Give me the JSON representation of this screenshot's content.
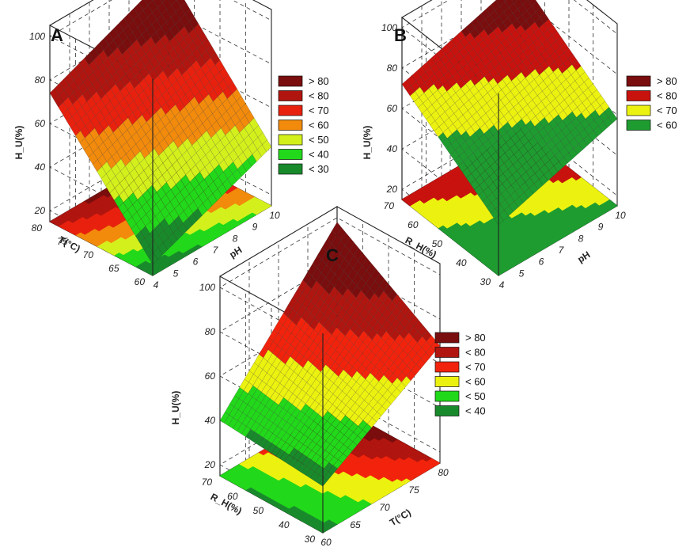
{
  "chart_data": [
    {
      "type": "surface",
      "panel_label": "A",
      "zlabel": "H_U(%)",
      "xlabel": "pH",
      "ylabel": "T(°C)",
      "z_ticks": [
        "20",
        "40",
        "60",
        "80",
        "100"
      ],
      "x_ticks": [
        "4",
        "5",
        "6",
        "7",
        "8",
        "9",
        "10"
      ],
      "y_ticks": [
        "60",
        "65",
        "70",
        "75",
        "80"
      ],
      "xlim": [
        4,
        10
      ],
      "ylim": [
        60,
        80
      ],
      "zlim": [
        15,
        105
      ],
      "surface": {
        "z_at_x10_y80": 97,
        "z_at_x4_y80": 74,
        "z_at_x10_y60": 42,
        "z_at_x4_y60": 20
      },
      "legend": {
        "labels": [
          "> 80",
          "< 80",
          "< 70",
          "< 60",
          "< 50",
          "< 40",
          "< 30"
        ],
        "colors": [
          "#7a0d0d",
          "#b0150f",
          "#e8200e",
          "#f28a0c",
          "#d4f01c",
          "#22d81a",
          "#198a2c"
        ]
      },
      "levels": [
        30,
        40,
        50,
        60,
        70,
        80
      ]
    },
    {
      "type": "surface",
      "panel_label": "B",
      "zlabel": "H_U(%)",
      "xlabel": "pH",
      "ylabel": "R_H(%)",
      "z_ticks": [
        "20",
        "40",
        "60",
        "80",
        "100"
      ],
      "x_ticks": [
        "4",
        "5",
        "6",
        "7",
        "8",
        "9",
        "10"
      ],
      "y_ticks": [
        "30",
        "40",
        "50",
        "60",
        "70"
      ],
      "xlim": [
        4,
        10
      ],
      "ylim": [
        30,
        70
      ],
      "zlim": [
        15,
        105
      ],
      "surface": {
        "z_at_x10_y70": 90,
        "z_at_x4_y70": 72,
        "z_at_x10_y30": 58,
        "z_at_x4_y30": 40
      },
      "legend": {
        "labels": [
          "> 80",
          "< 80",
          "< 70",
          "< 60"
        ],
        "colors": [
          "#7a0d0d",
          "#c8120e",
          "#ecf20f",
          "#1e9c30"
        ]
      },
      "levels": [
        60,
        70,
        80
      ]
    },
    {
      "type": "surface",
      "panel_label": "C",
      "zlabel": "H_U(%)",
      "xlabel": "T(°C)",
      "ylabel": "R_H(%)",
      "z_ticks": [
        "20",
        "40",
        "60",
        "80",
        "100"
      ],
      "x_ticks": [
        "60",
        "65",
        "70",
        "75",
        "80"
      ],
      "y_ticks": [
        "30",
        "40",
        "50",
        "60",
        "70"
      ],
      "xlim": [
        60,
        80
      ],
      "ylim": [
        30,
        70
      ],
      "zlim": [
        15,
        105
      ],
      "surface": {
        "z_at_x80_y70": 98,
        "z_at_x60_y70": 40,
        "z_at_x80_y30": 68,
        "z_at_x60_y30": 36
      },
      "legend": {
        "labels": [
          "> 80",
          "< 80",
          "< 70",
          "< 60",
          "< 50",
          "< 40"
        ],
        "colors": [
          "#7a0d0d",
          "#b0150f",
          "#f2230c",
          "#ecf20f",
          "#22d81a",
          "#198a2c"
        ]
      },
      "levels": [
        40,
        50,
        60,
        70,
        80
      ]
    }
  ]
}
